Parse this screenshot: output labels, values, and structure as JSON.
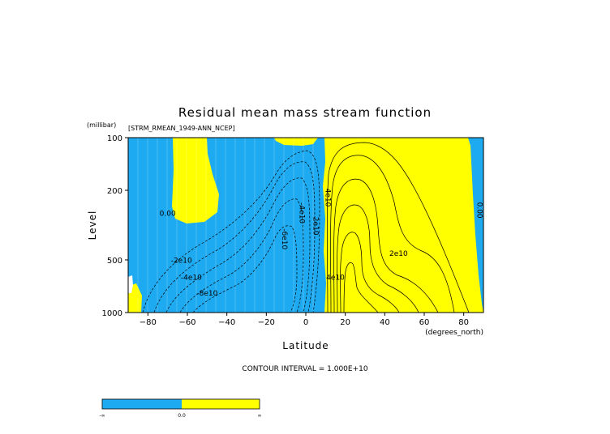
{
  "chart_data": {
    "type": "heatmap",
    "title": "Residual mean mass stream function",
    "subtitle": "[STRM_RMEAN_1949-ANN_NCEP]",
    "xlabel": "Latitude",
    "x_units": "(degrees_north)",
    "ylabel": "Level",
    "y_units": "(millibar)",
    "xlim": [
      -90,
      90
    ],
    "ylim": [
      1000,
      100
    ],
    "y_scale": "log",
    "x_ticks": [
      -80,
      -60,
      -40,
      -20,
      0,
      20,
      40,
      60,
      80
    ],
    "y_ticks": [
      100,
      200,
      500,
      1000
    ],
    "contour_interval_text": "CONTOUR INTERVAL = 1.000E+10",
    "contour_interval": 10000000000,
    "contour_labels": [
      {
        "text": "0.00",
        "lat": -70,
        "lev": 280
      },
      {
        "text": "-2e10",
        "lat": -63,
        "lev": 520
      },
      {
        "text": "-4e10",
        "lat": -58,
        "lev": 650
      },
      {
        "text": "-8e10",
        "lat": -50,
        "lev": 800
      },
      {
        "text": "-6e10",
        "lat": -12,
        "lev": 380
      },
      {
        "text": "-4e10",
        "lat": -3,
        "lev": 270
      },
      {
        "text": "2e10",
        "lat": 4,
        "lev": 320
      },
      {
        "text": "4e10",
        "lat": 10,
        "lev": 220
      },
      {
        "text": "2e10",
        "lat": 47,
        "lev": 475
      },
      {
        "text": "4e10",
        "lat": 15,
        "lev": 650
      },
      {
        "text": "0.00",
        "lat": 87,
        "lev": 260
      }
    ],
    "colors": {
      "negative": "#1EAAF0",
      "positive": "#FFFF00",
      "mask": "#FFFFFF"
    },
    "colorbar": {
      "labels": [
        "-∞",
        "0.0",
        "∞"
      ]
    },
    "grid": false
  }
}
